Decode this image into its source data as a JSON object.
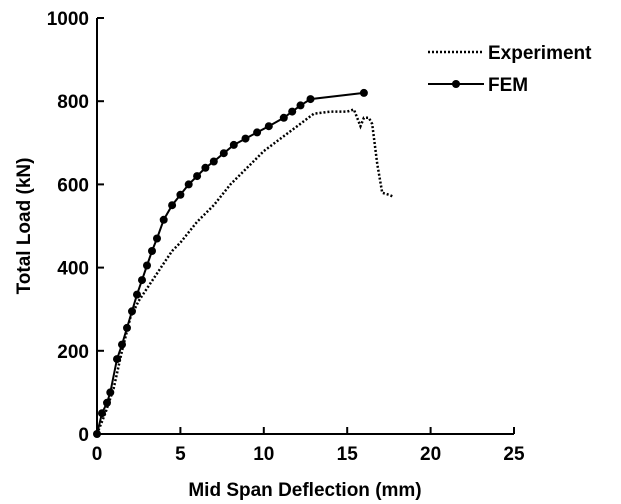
{
  "chart_data": {
    "type": "line",
    "xlabel": "Mid Span Deflection (mm)",
    "ylabel": "Total Load (kN)",
    "xlim": [
      0,
      25
    ],
    "ylim": [
      0,
      1000
    ],
    "x_ticks": [
      0,
      5,
      10,
      15,
      20,
      25
    ],
    "y_ticks": [
      0,
      200,
      400,
      600,
      800,
      1000
    ],
    "x_tick_labels": [
      "0",
      "5",
      "10",
      "15",
      "20",
      "25"
    ],
    "y_tick_labels": [
      "0",
      "200",
      "400",
      "600",
      "800",
      "1000"
    ],
    "grid": false,
    "legend_position": "top-right",
    "series": [
      {
        "name": "Experiment",
        "style": "dotted",
        "marker": "none",
        "color": "#000000",
        "x": [
          0,
          0.5,
          1.0,
          1.5,
          2.0,
          2.5,
          3.0,
          3.5,
          4.0,
          4.5,
          5.0,
          6.0,
          7.0,
          8.0,
          9.0,
          10.0,
          11.0,
          12.0,
          13.0,
          14.0,
          15.0,
          15.4,
          15.6,
          15.8,
          16.0,
          16.3,
          16.5,
          16.8,
          17.1,
          17.5,
          17.8
        ],
        "values": [
          0,
          50,
          110,
          200,
          280,
          320,
          350,
          380,
          410,
          440,
          460,
          510,
          550,
          600,
          640,
          680,
          710,
          740,
          770,
          775,
          775,
          780,
          760,
          740,
          760,
          760,
          745,
          650,
          580,
          575,
          570
        ]
      },
      {
        "name": "FEM",
        "style": "solid",
        "marker": "circle",
        "color": "#000000",
        "x": [
          0,
          0.3,
          0.6,
          0.8,
          1.2,
          1.5,
          1.8,
          2.1,
          2.4,
          2.7,
          3.0,
          3.3,
          3.6,
          4.0,
          4.5,
          5.0,
          5.5,
          6.0,
          6.5,
          7.0,
          7.6,
          8.2,
          8.9,
          9.6,
          10.3,
          11.2,
          11.7,
          12.2,
          12.8,
          16.0
        ],
        "values": [
          0,
          50,
          75,
          100,
          180,
          215,
          255,
          295,
          335,
          370,
          405,
          440,
          470,
          515,
          550,
          575,
          600,
          620,
          640,
          655,
          675,
          695,
          710,
          725,
          740,
          760,
          775,
          790,
          805,
          820
        ]
      }
    ]
  }
}
